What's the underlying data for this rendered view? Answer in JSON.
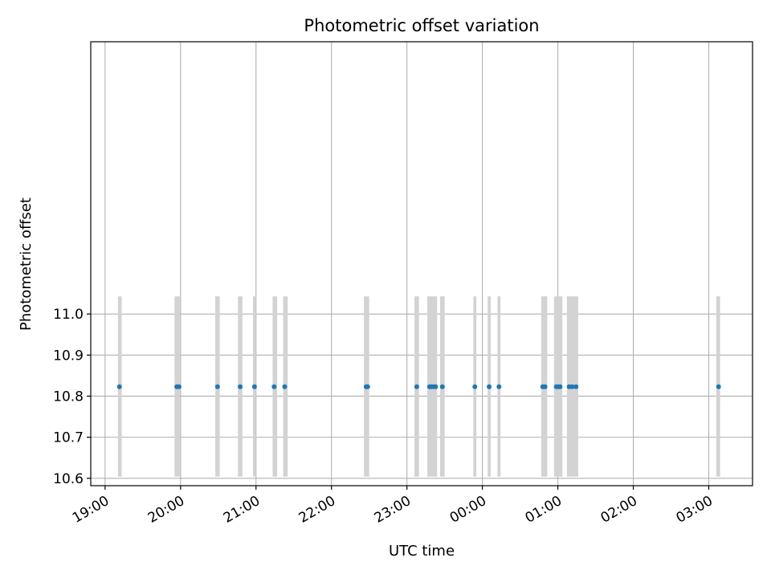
{
  "chart_data": {
    "type": "scatter",
    "title": "Photometric offset variation",
    "xlabel": "UTC time",
    "ylabel": "Photometric offset",
    "x_unit": "hours after 19:00 UTC",
    "xlim": [
      -0.19,
      8.58
    ],
    "ylim": [
      10.582,
      11.663
    ],
    "x_ticks": [
      {
        "value": 0,
        "label": "19:00"
      },
      {
        "value": 1,
        "label": "20:00"
      },
      {
        "value": 2,
        "label": "21:00"
      },
      {
        "value": 3,
        "label": "22:00"
      },
      {
        "value": 4,
        "label": "23:00"
      },
      {
        "value": 5,
        "label": "00:00"
      },
      {
        "value": 6,
        "label": "01:00"
      },
      {
        "value": 7,
        "label": "02:00"
      },
      {
        "value": 8,
        "label": "03:00"
      }
    ],
    "y_ticks": [
      {
        "value": 10.6,
        "label": "10.6"
      },
      {
        "value": 10.7,
        "label": "10.7"
      },
      {
        "value": 10.8,
        "label": "10.8"
      },
      {
        "value": 10.9,
        "label": "10.9"
      },
      {
        "value": 11.0,
        "label": "11.0"
      }
    ],
    "grid": true,
    "bands": {
      "color": "#d3d3d3",
      "y_range": [
        10.604,
        11.043
      ],
      "intervals": [
        [
          0.17,
          0.22
        ],
        [
          0.92,
          0.99
        ],
        [
          1.46,
          1.52
        ],
        [
          1.76,
          1.82
        ],
        [
          1.96,
          2.0
        ],
        [
          2.22,
          2.28
        ],
        [
          2.36,
          2.42
        ],
        [
          3.43,
          3.5
        ],
        [
          4.1,
          4.16
        ],
        [
          4.27,
          4.4
        ],
        [
          4.44,
          4.5
        ],
        [
          4.88,
          4.92
        ],
        [
          5.07,
          5.11
        ],
        [
          5.2,
          5.24
        ],
        [
          5.78,
          5.86
        ],
        [
          5.95,
          6.06
        ],
        [
          6.12,
          6.27
        ],
        [
          8.1,
          8.15
        ]
      ]
    },
    "series": [
      {
        "color": "#1f77b4",
        "x": [
          0.19,
          0.95,
          0.98,
          1.49,
          1.79,
          1.98,
          2.24,
          2.38,
          3.46,
          3.48,
          4.13,
          4.3,
          4.33,
          4.36,
          4.38,
          4.47,
          4.9,
          5.09,
          5.22,
          5.8,
          5.83,
          5.98,
          6.0,
          6.03,
          6.15,
          6.19,
          6.24,
          8.13
        ],
        "y": [
          10.823,
          10.823,
          10.823,
          10.823,
          10.823,
          10.823,
          10.823,
          10.823,
          10.823,
          10.823,
          10.823,
          10.823,
          10.823,
          10.823,
          10.823,
          10.823,
          10.823,
          10.823,
          10.823,
          10.823,
          10.823,
          10.823,
          10.823,
          10.823,
          10.823,
          10.823,
          10.823,
          10.823
        ]
      }
    ]
  }
}
